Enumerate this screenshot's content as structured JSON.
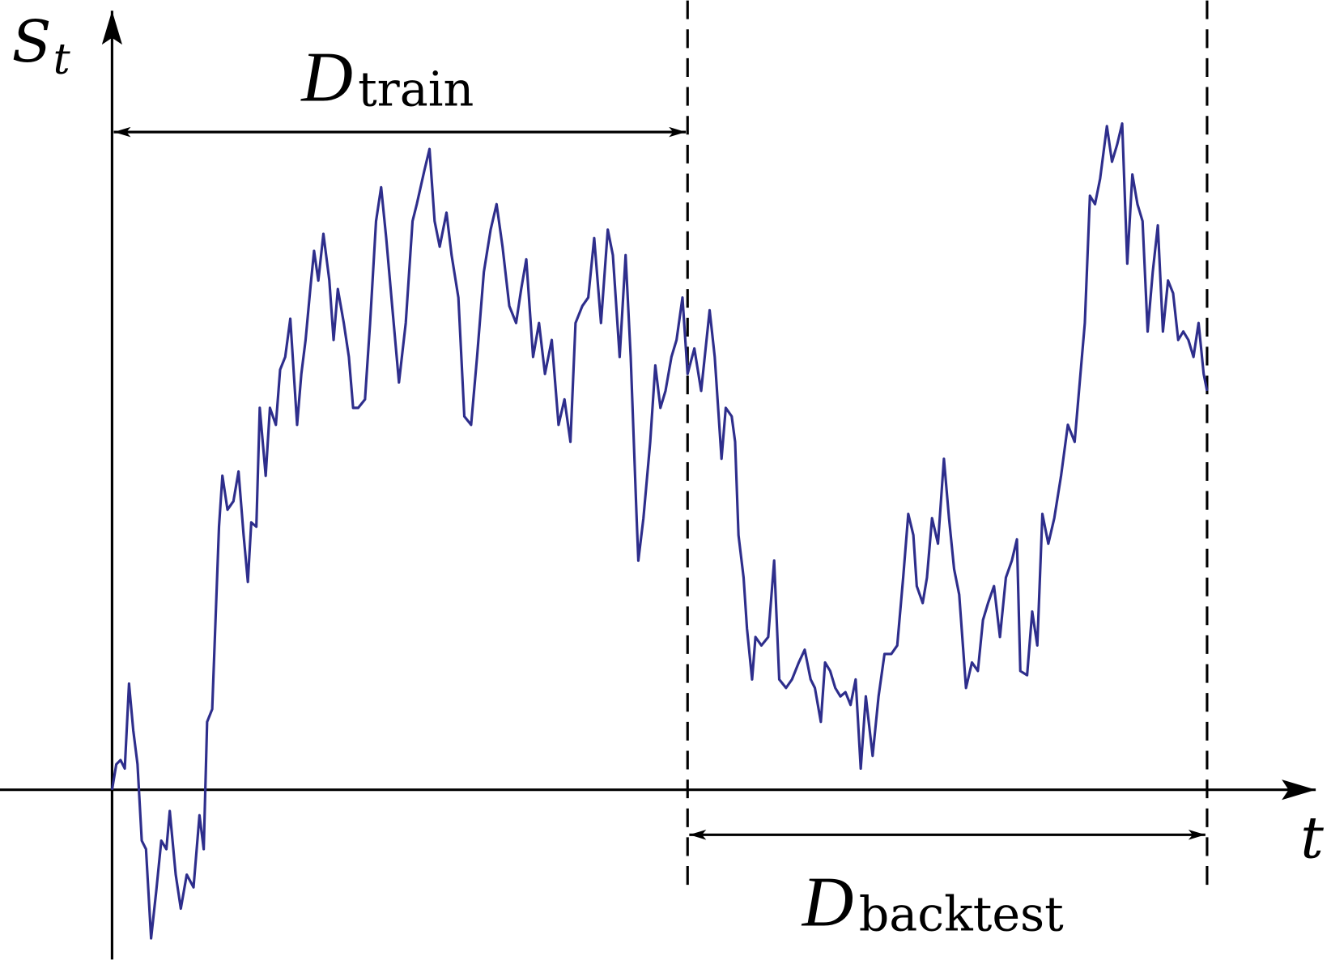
{
  "axes": {
    "y_label": {
      "main": "S",
      "sub": "t"
    },
    "x_label": "t"
  },
  "intervals": [
    {
      "symbol": "D",
      "subscript": "train"
    },
    {
      "symbol": "D",
      "subscript": "backtest"
    }
  ]
}
